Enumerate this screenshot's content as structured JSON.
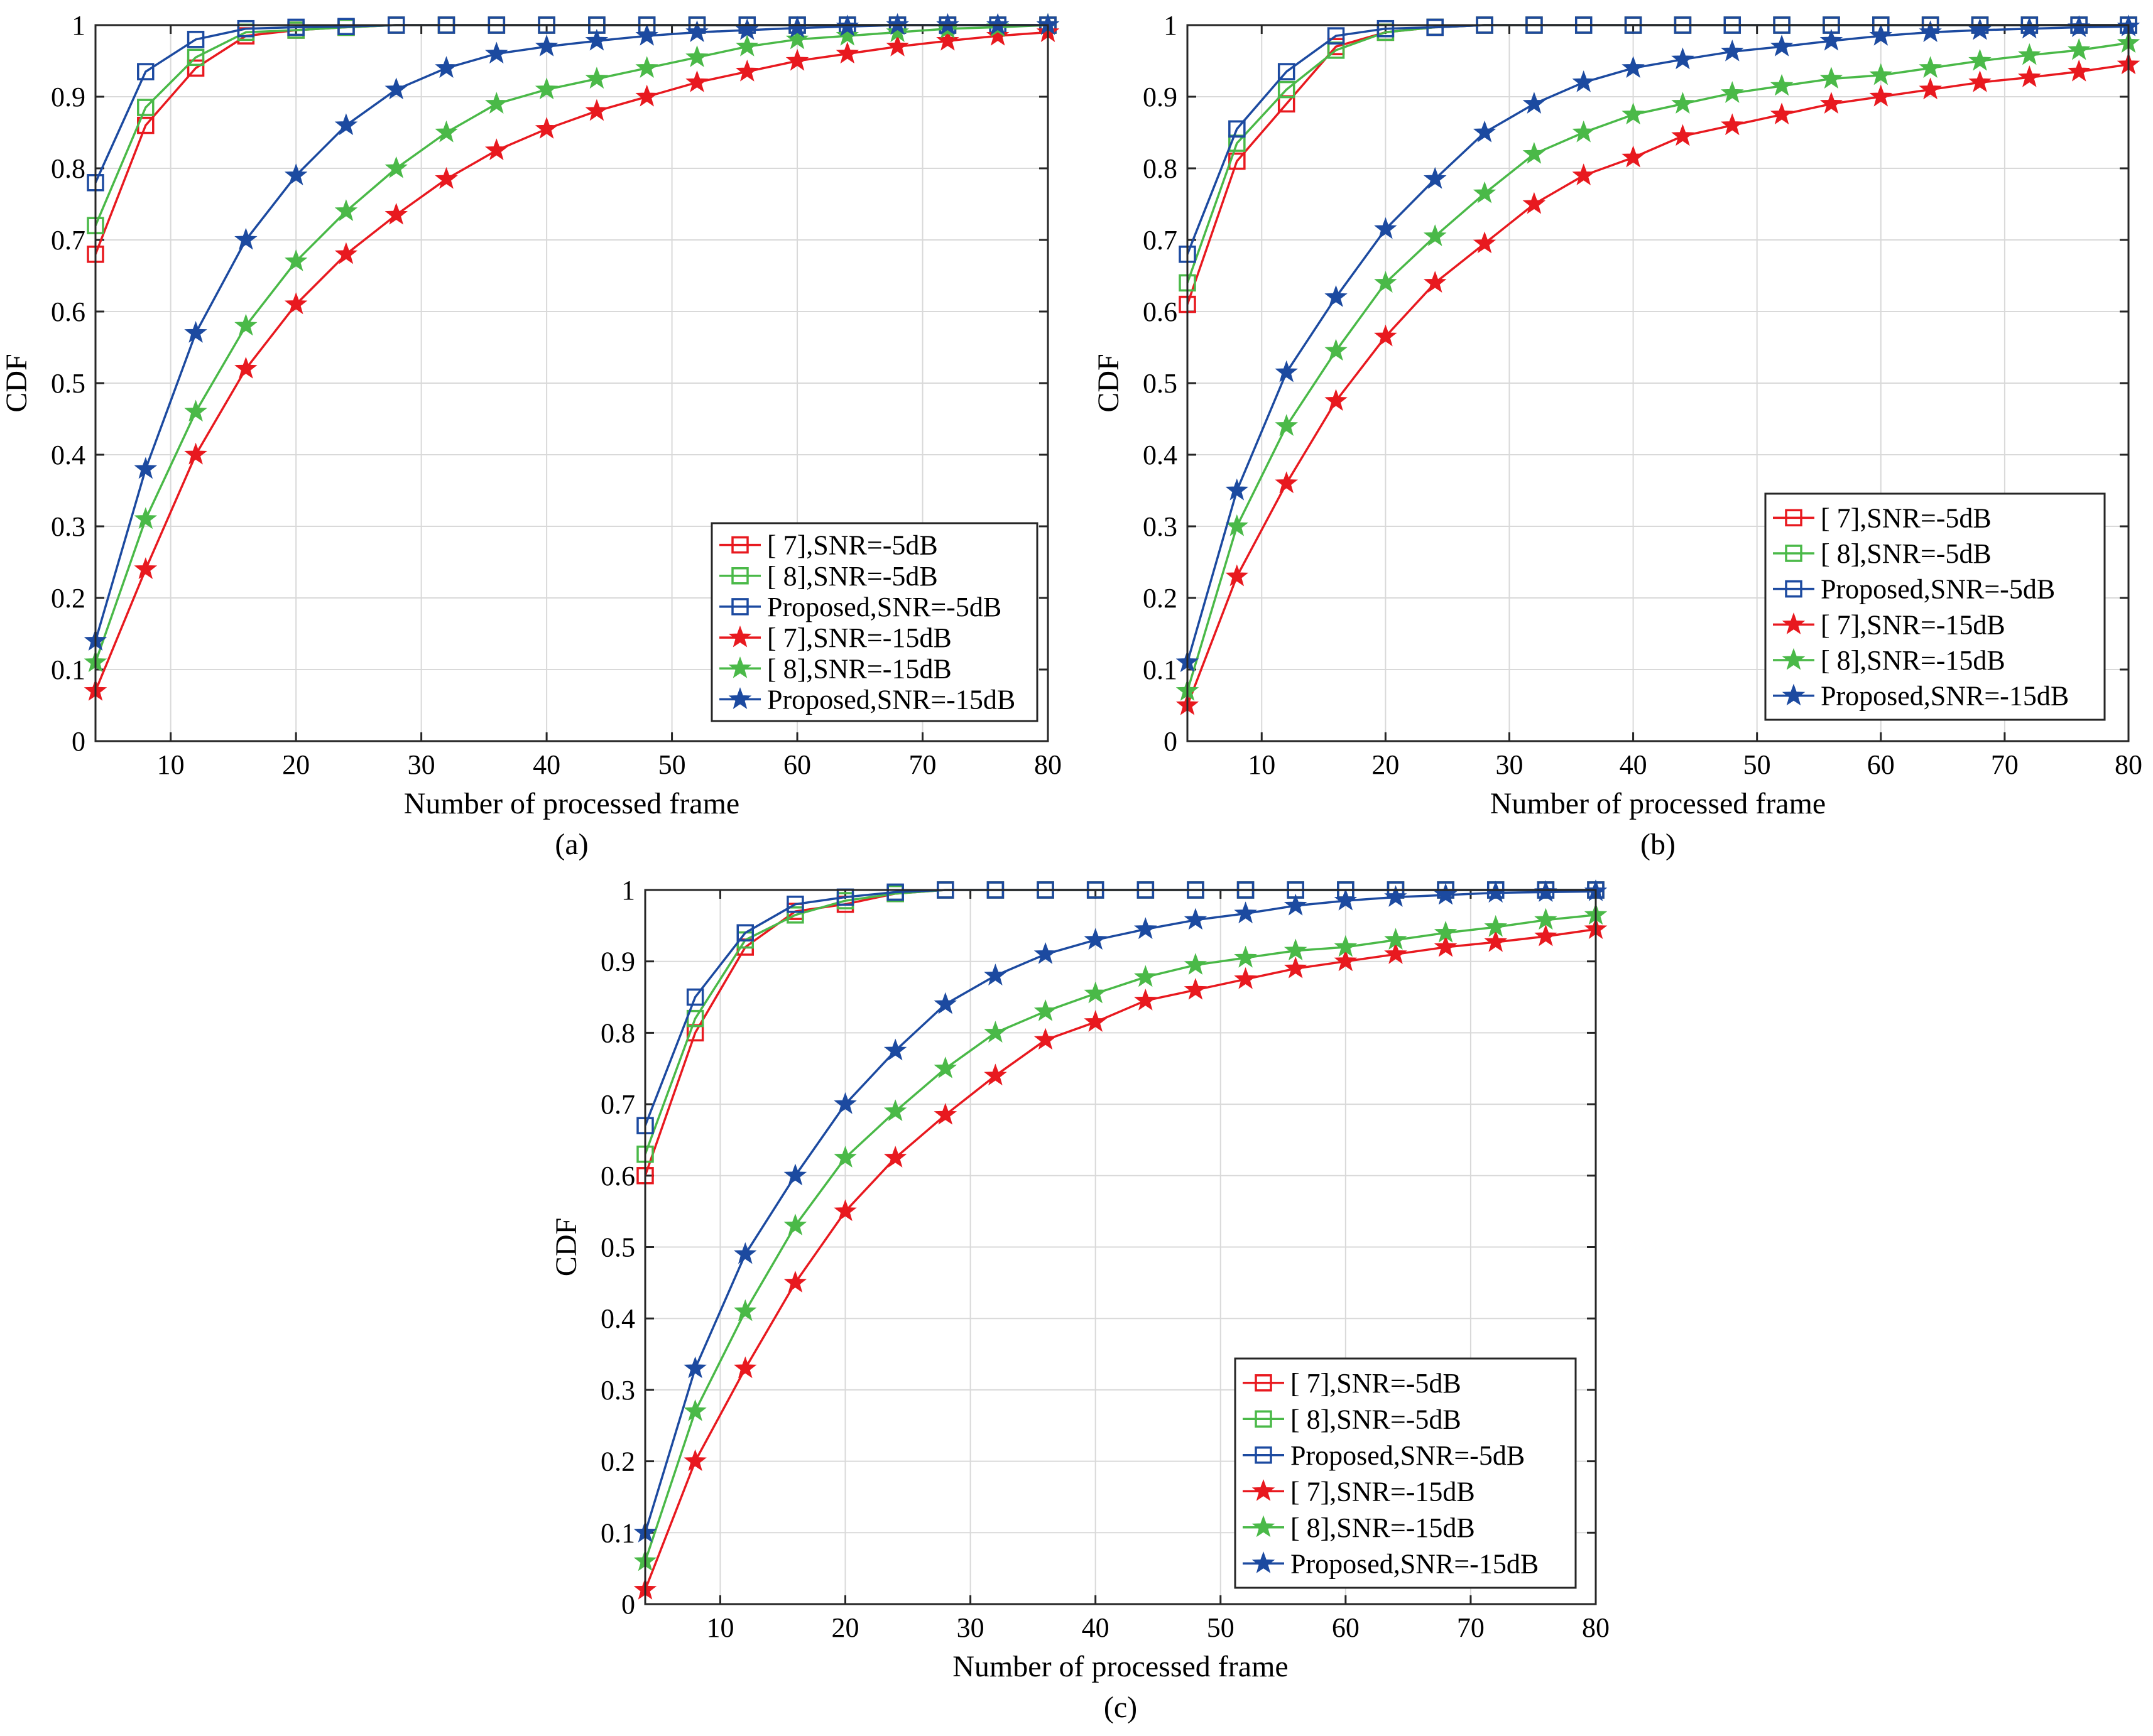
{
  "figure": {
    "colors": {
      "red": "#e8191f",
      "green": "#4ab948",
      "blue": "#1c4aa0"
    },
    "legend_labels": [
      "[ 7],SNR=-5dB",
      "[ 8],SNR=-5dB",
      "Proposed,SNR=-5dB",
      "[ 7],SNR=-15dB",
      "[ 8],SNR=-15dB",
      "Proposed,SNR=-15dB"
    ]
  },
  "chart_data": [
    {
      "type": "line",
      "caption": "(a)",
      "xlabel": "Number of processed frame",
      "ylabel": "CDF",
      "xlim": [
        4,
        80
      ],
      "ylim": [
        0,
        1
      ],
      "xticks": [
        10,
        20,
        30,
        40,
        50,
        60,
        70,
        80
      ],
      "yticks": [
        0,
        0.1,
        0.2,
        0.3,
        0.4,
        0.5,
        0.6,
        0.7,
        0.8,
        0.9,
        1
      ],
      "legend_position": "bottom-right",
      "x": [
        4,
        8,
        12,
        16,
        20,
        24,
        28,
        32,
        36,
        40,
        44,
        48,
        52,
        56,
        60,
        64,
        68,
        72,
        76,
        80
      ],
      "series": [
        {
          "name": "[ 7],SNR=-5dB",
          "color": "#e8191f",
          "marker": "square",
          "values": [
            0.68,
            0.86,
            0.94,
            0.985,
            0.993,
            0.997,
            1,
            1,
            1,
            1,
            1,
            1,
            1,
            1,
            1,
            1,
            1,
            1,
            1,
            1
          ]
        },
        {
          "name": "[ 8],SNR=-5dB",
          "color": "#4ab948",
          "marker": "square",
          "values": [
            0.72,
            0.885,
            0.955,
            0.99,
            0.993,
            0.997,
            1,
            1,
            1,
            1,
            1,
            1,
            1,
            1,
            1,
            1,
            1,
            1,
            1,
            1
          ]
        },
        {
          "name": "Proposed,SNR=-5dB",
          "color": "#1c4aa0",
          "marker": "square",
          "values": [
            0.78,
            0.935,
            0.98,
            0.995,
            0.997,
            0.998,
            1,
            1,
            1,
            1,
            1,
            1,
            1,
            1,
            1,
            1,
            1,
            1,
            1,
            1
          ]
        },
        {
          "name": "[ 7],SNR=-15dB",
          "color": "#e8191f",
          "marker": "star",
          "values": [
            0.07,
            0.24,
            0.4,
            0.52,
            0.61,
            0.68,
            0.735,
            0.785,
            0.825,
            0.855,
            0.88,
            0.9,
            0.92,
            0.935,
            0.95,
            0.96,
            0.97,
            0.978,
            0.985,
            0.99
          ]
        },
        {
          "name": "[ 8],SNR=-15dB",
          "color": "#4ab948",
          "marker": "star",
          "values": [
            0.11,
            0.31,
            0.46,
            0.58,
            0.67,
            0.74,
            0.8,
            0.85,
            0.89,
            0.91,
            0.925,
            0.94,
            0.955,
            0.97,
            0.98,
            0.985,
            0.99,
            0.995,
            0.997,
            1
          ]
        },
        {
          "name": "Proposed,SNR=-15dB",
          "color": "#1c4aa0",
          "marker": "star",
          "values": [
            0.14,
            0.38,
            0.57,
            0.7,
            0.79,
            0.86,
            0.91,
            0.94,
            0.96,
            0.97,
            0.978,
            0.985,
            0.99,
            0.993,
            0.996,
            0.998,
            1,
            1,
            1,
            1
          ]
        }
      ]
    },
    {
      "type": "line",
      "caption": "(b)",
      "xlabel": "Number of processed frame",
      "ylabel": "CDF",
      "xlim": [
        4,
        80
      ],
      "ylim": [
        0,
        1
      ],
      "xticks": [
        10,
        20,
        30,
        40,
        50,
        60,
        70,
        80
      ],
      "yticks": [
        0,
        0.1,
        0.2,
        0.3,
        0.4,
        0.5,
        0.6,
        0.7,
        0.8,
        0.9,
        1
      ],
      "legend_position": "bottom-right",
      "x": [
        4,
        8,
        12,
        16,
        20,
        24,
        28,
        32,
        36,
        40,
        44,
        48,
        52,
        56,
        60,
        64,
        68,
        72,
        76,
        80
      ],
      "series": [
        {
          "name": "[ 7],SNR=-5dB",
          "color": "#e8191f",
          "marker": "square",
          "values": [
            0.61,
            0.81,
            0.89,
            0.97,
            0.99,
            0.997,
            1,
            1,
            1,
            1,
            1,
            1,
            1,
            1,
            1,
            1,
            1,
            1,
            1,
            1
          ]
        },
        {
          "name": "[ 8],SNR=-5dB",
          "color": "#4ab948",
          "marker": "square",
          "values": [
            0.64,
            0.835,
            0.91,
            0.965,
            0.99,
            0.997,
            1,
            1,
            1,
            1,
            1,
            1,
            1,
            1,
            1,
            1,
            1,
            1,
            1,
            1
          ]
        },
        {
          "name": "Proposed,SNR=-5dB",
          "color": "#1c4aa0",
          "marker": "square",
          "values": [
            0.68,
            0.855,
            0.935,
            0.985,
            0.995,
            0.997,
            1,
            1,
            1,
            1,
            1,
            1,
            1,
            1,
            1,
            1,
            1,
            1,
            1,
            1
          ]
        },
        {
          "name": "[ 7],SNR=-15dB",
          "color": "#e8191f",
          "marker": "star",
          "values": [
            0.05,
            0.23,
            0.36,
            0.475,
            0.565,
            0.64,
            0.695,
            0.75,
            0.79,
            0.815,
            0.845,
            0.86,
            0.875,
            0.89,
            0.9,
            0.91,
            0.92,
            0.927,
            0.935,
            0.945
          ]
        },
        {
          "name": "[ 8],SNR=-15dB",
          "color": "#4ab948",
          "marker": "star",
          "values": [
            0.07,
            0.3,
            0.44,
            0.545,
            0.64,
            0.705,
            0.765,
            0.82,
            0.85,
            0.875,
            0.89,
            0.905,
            0.915,
            0.925,
            0.93,
            0.94,
            0.95,
            0.958,
            0.965,
            0.975
          ]
        },
        {
          "name": "Proposed,SNR=-15dB",
          "color": "#1c4aa0",
          "marker": "star",
          "values": [
            0.11,
            0.35,
            0.515,
            0.62,
            0.715,
            0.785,
            0.85,
            0.89,
            0.92,
            0.94,
            0.952,
            0.963,
            0.97,
            0.978,
            0.985,
            0.99,
            0.993,
            0.995,
            0.997,
            0.998
          ]
        }
      ]
    },
    {
      "type": "line",
      "caption": "(c)",
      "xlabel": "Number of processed frame",
      "ylabel": "CDF",
      "xlim": [
        4,
        80
      ],
      "ylim": [
        0,
        1
      ],
      "xticks": [
        10,
        20,
        30,
        40,
        50,
        60,
        70,
        80
      ],
      "yticks": [
        0,
        0.1,
        0.2,
        0.3,
        0.4,
        0.5,
        0.6,
        0.7,
        0.8,
        0.9,
        1
      ],
      "legend_position": "bottom-right",
      "x": [
        4,
        8,
        12,
        16,
        20,
        24,
        28,
        32,
        36,
        40,
        44,
        48,
        52,
        56,
        60,
        64,
        68,
        72,
        76,
        80
      ],
      "series": [
        {
          "name": "[ 7],SNR=-5dB",
          "color": "#e8191f",
          "marker": "square",
          "values": [
            0.6,
            0.8,
            0.92,
            0.97,
            0.98,
            0.995,
            1,
            1,
            1,
            1,
            1,
            1,
            1,
            1,
            1,
            1,
            1,
            1,
            1,
            1
          ]
        },
        {
          "name": "[ 8],SNR=-5dB",
          "color": "#4ab948",
          "marker": "square",
          "values": [
            0.63,
            0.82,
            0.93,
            0.965,
            0.985,
            0.995,
            1,
            1,
            1,
            1,
            1,
            1,
            1,
            1,
            1,
            1,
            1,
            1,
            1,
            1
          ]
        },
        {
          "name": "Proposed,SNR=-5dB",
          "color": "#1c4aa0",
          "marker": "square",
          "values": [
            0.67,
            0.85,
            0.94,
            0.98,
            0.99,
            0.997,
            1,
            1,
            1,
            1,
            1,
            1,
            1,
            1,
            1,
            1,
            1,
            1,
            1,
            1
          ]
        },
        {
          "name": "[ 7],SNR=-15dB",
          "color": "#e8191f",
          "marker": "star",
          "values": [
            0.02,
            0.2,
            0.33,
            0.45,
            0.55,
            0.625,
            0.685,
            0.74,
            0.79,
            0.815,
            0.845,
            0.86,
            0.875,
            0.89,
            0.9,
            0.91,
            0.92,
            0.927,
            0.935,
            0.945
          ]
        },
        {
          "name": "[ 8],SNR=-15dB",
          "color": "#4ab948",
          "marker": "star",
          "values": [
            0.06,
            0.27,
            0.41,
            0.53,
            0.625,
            0.69,
            0.75,
            0.8,
            0.83,
            0.855,
            0.878,
            0.895,
            0.905,
            0.915,
            0.92,
            0.93,
            0.94,
            0.948,
            0.958,
            0.965
          ]
        },
        {
          "name": "Proposed,SNR=-15dB",
          "color": "#1c4aa0",
          "marker": "star",
          "values": [
            0.1,
            0.33,
            0.49,
            0.6,
            0.7,
            0.775,
            0.84,
            0.88,
            0.91,
            0.93,
            0.945,
            0.958,
            0.967,
            0.978,
            0.985,
            0.99,
            0.993,
            0.996,
            0.997,
            0.998
          ]
        }
      ]
    }
  ]
}
